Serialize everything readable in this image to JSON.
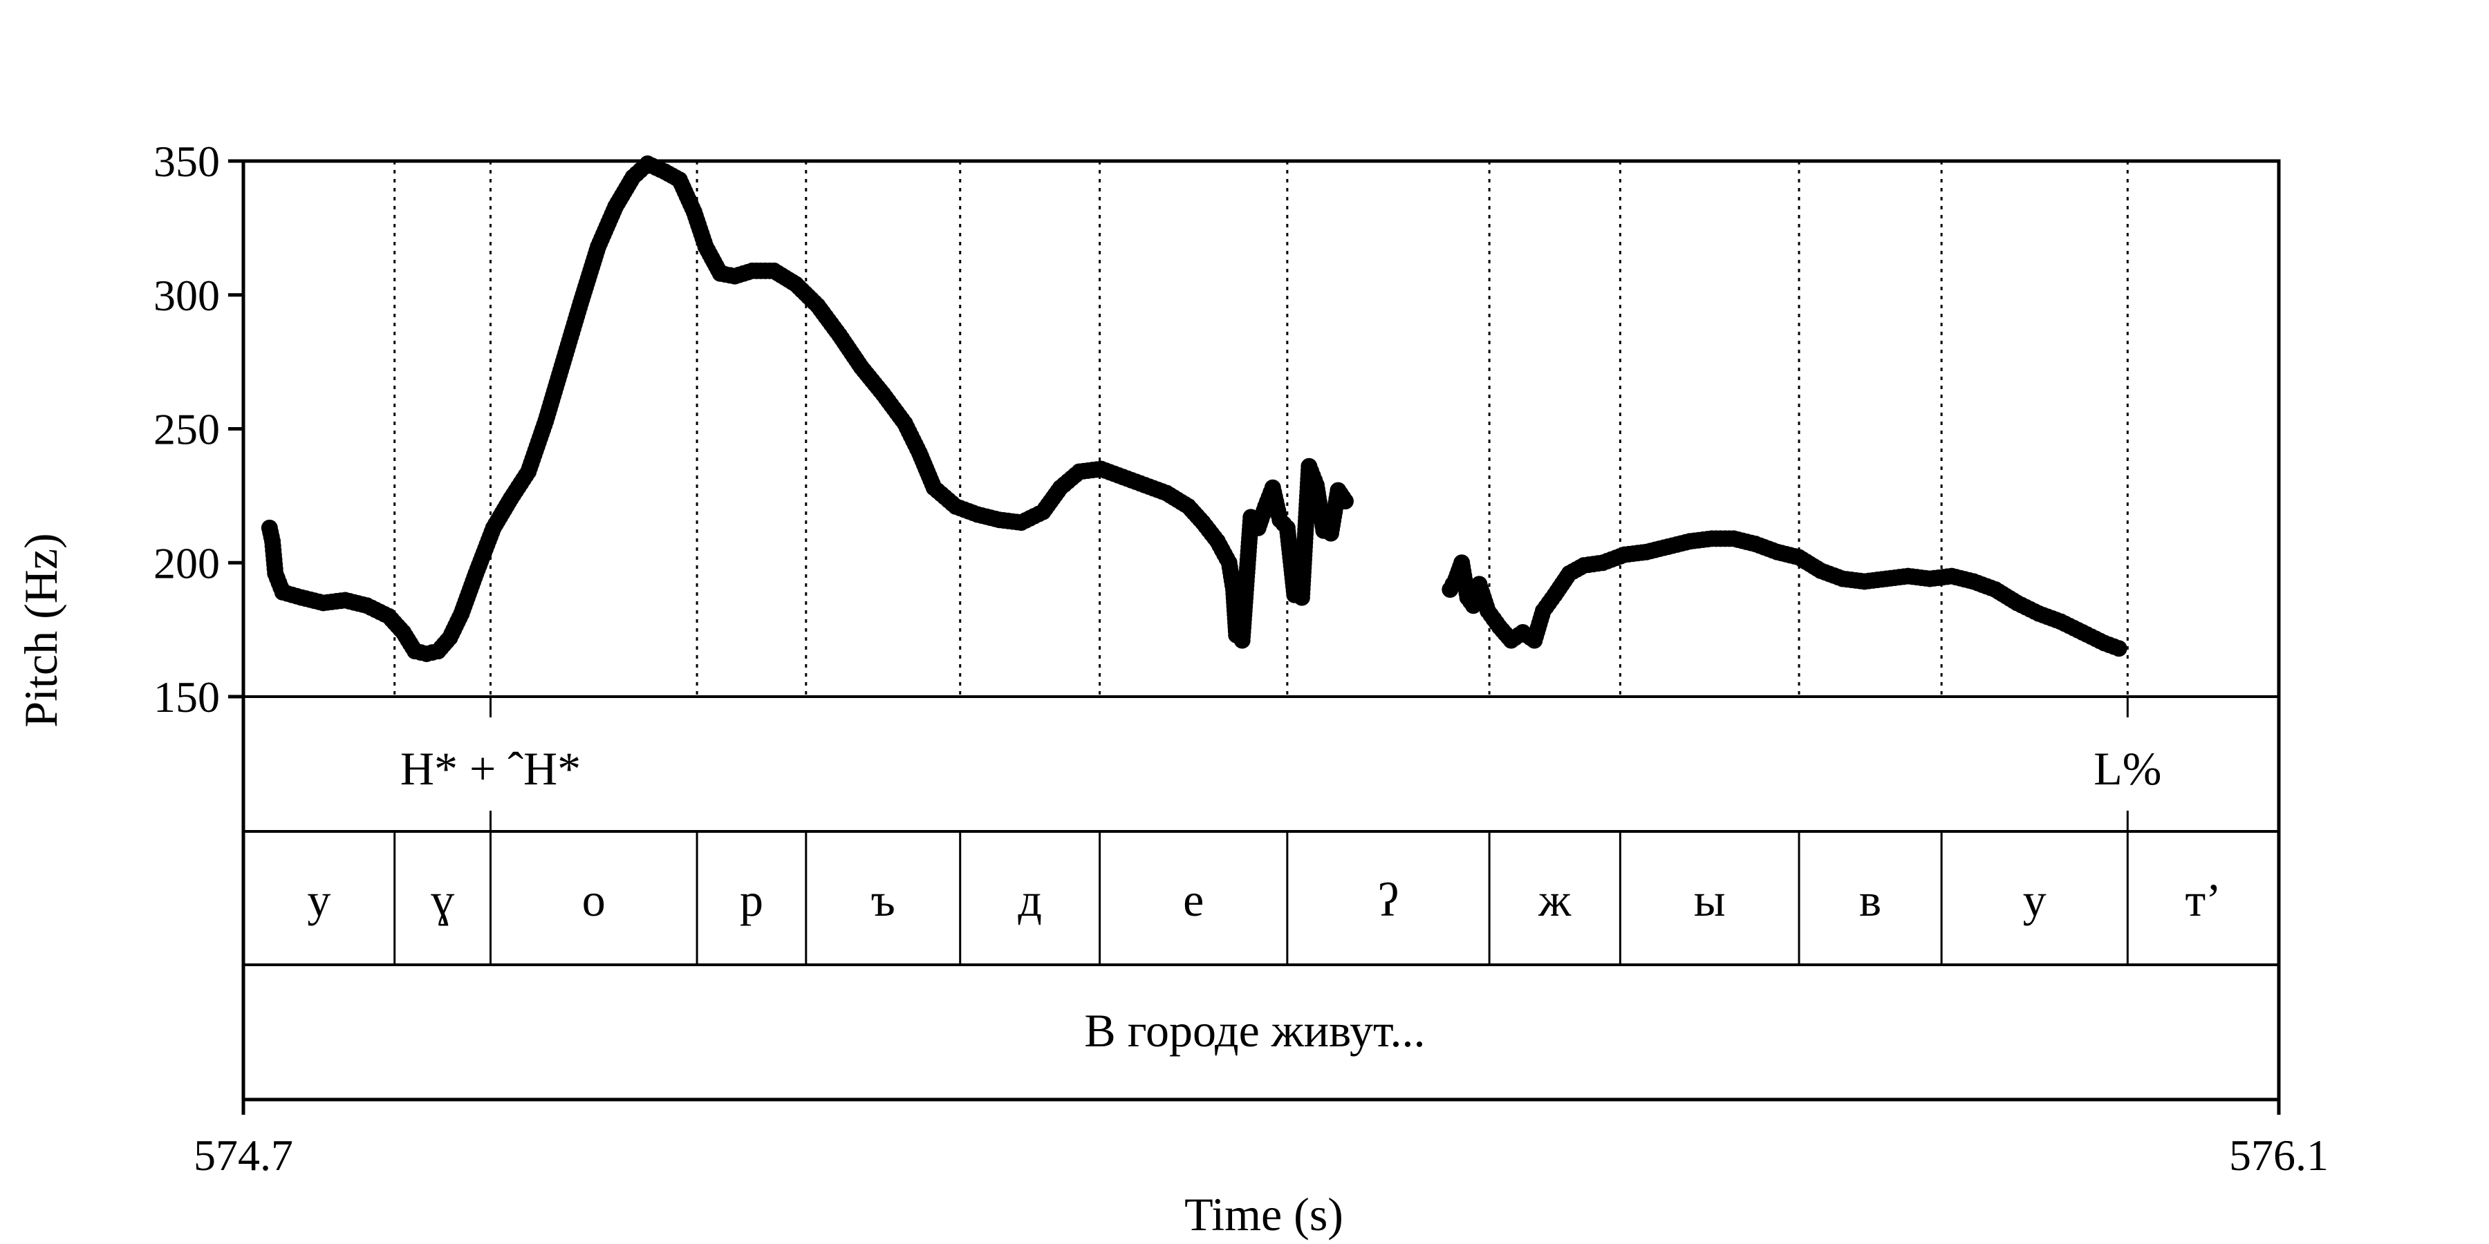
{
  "chart_data": {
    "type": "scatter",
    "title": "",
    "ylabel": "Pitch (Hz)",
    "xlabel": "Time (s)",
    "xlim": [
      574.7,
      576.1
    ],
    "ylim": [
      150,
      350
    ],
    "yticks": [
      150,
      200,
      250,
      300,
      350
    ],
    "xtick_labels": [
      "574.7",
      "576.1"
    ],
    "point_color": "#000000",
    "boundaries": [
      574.804,
      574.87,
      575.012,
      575.087,
      575.193,
      575.289,
      575.418,
      575.557,
      575.647,
      575.77,
      575.868,
      575.996
    ],
    "tone_tier": [
      {
        "time": 574.87,
        "label": "H* + ˆH*"
      },
      {
        "time": 575.996,
        "label": "L%"
      }
    ],
    "segment_tier": [
      "у",
      "ɣ",
      "о",
      "р",
      "ъ",
      "д",
      "е",
      "ʔ",
      "ж",
      "ы",
      "в",
      "у",
      "т’"
    ],
    "text_tier": "В городе живут...",
    "pitch_contour": [
      [
        574.718,
        213
      ],
      [
        574.72,
        208
      ],
      [
        574.722,
        196
      ],
      [
        574.727,
        189
      ],
      [
        574.74,
        187
      ],
      [
        574.755,
        185
      ],
      [
        574.77,
        186
      ],
      [
        574.785,
        184
      ],
      [
        574.8,
        180
      ],
      [
        574.81,
        174
      ],
      [
        574.818,
        167
      ],
      [
        574.826,
        166
      ],
      [
        574.834,
        167
      ],
      [
        574.842,
        172
      ],
      [
        574.85,
        181
      ],
      [
        574.86,
        196
      ],
      [
        574.872,
        213
      ],
      [
        574.884,
        224
      ],
      [
        574.896,
        234
      ],
      [
        574.908,
        253
      ],
      [
        574.92,
        275
      ],
      [
        574.932,
        297
      ],
      [
        574.944,
        318
      ],
      [
        574.956,
        333
      ],
      [
        574.968,
        344
      ],
      [
        574.978,
        349
      ],
      [
        574.99,
        346
      ],
      [
        575.0,
        343
      ],
      [
        575.01,
        331
      ],
      [
        575.018,
        318
      ],
      [
        575.028,
        308
      ],
      [
        575.038,
        307
      ],
      [
        575.05,
        309
      ],
      [
        575.065,
        309
      ],
      [
        575.08,
        304
      ],
      [
        575.095,
        296
      ],
      [
        575.11,
        285
      ],
      [
        575.125,
        273
      ],
      [
        575.14,
        263
      ],
      [
        575.155,
        252
      ],
      [
        575.165,
        241
      ],
      [
        575.175,
        228
      ],
      [
        575.19,
        221
      ],
      [
        575.205,
        218
      ],
      [
        575.22,
        216
      ],
      [
        575.235,
        215
      ],
      [
        575.25,
        219
      ],
      [
        575.262,
        228
      ],
      [
        575.275,
        234
      ],
      [
        575.29,
        235
      ],
      [
        575.305,
        232
      ],
      [
        575.32,
        229
      ],
      [
        575.335,
        226
      ],
      [
        575.35,
        221
      ],
      [
        575.36,
        215
      ],
      [
        575.37,
        208
      ],
      [
        575.378,
        200
      ],
      [
        575.381,
        190
      ],
      [
        575.383,
        173
      ],
      [
        575.387,
        171
      ],
      [
        575.393,
        217
      ],
      [
        575.398,
        213
      ],
      [
        575.403,
        221
      ],
      [
        575.408,
        228
      ],
      [
        575.413,
        216
      ],
      [
        575.418,
        213
      ],
      [
        575.423,
        188
      ],
      [
        575.428,
        187
      ],
      [
        575.433,
        236
      ],
      [
        575.438,
        229
      ],
      [
        575.443,
        212
      ],
      [
        575.448,
        211
      ],
      [
        575.453,
        227
      ],
      [
        575.458,
        223
      ],
      [
        575.53,
        190
      ],
      [
        575.534,
        194
      ],
      [
        575.538,
        200
      ],
      [
        575.542,
        187
      ],
      [
        575.546,
        184
      ],
      [
        575.55,
        192
      ],
      [
        575.556,
        182
      ],
      [
        575.564,
        176
      ],
      [
        575.572,
        171
      ],
      [
        575.58,
        174
      ],
      [
        575.588,
        171
      ],
      [
        575.594,
        182
      ],
      [
        575.602,
        188
      ],
      [
        575.612,
        196
      ],
      [
        575.622,
        199
      ],
      [
        575.635,
        200
      ],
      [
        575.65,
        203
      ],
      [
        575.665,
        204
      ],
      [
        575.68,
        206
      ],
      [
        575.695,
        208
      ],
      [
        575.71,
        209
      ],
      [
        575.725,
        209
      ],
      [
        575.74,
        207
      ],
      [
        575.755,
        204
      ],
      [
        575.77,
        202
      ],
      [
        575.785,
        197
      ],
      [
        575.8,
        194
      ],
      [
        575.815,
        193
      ],
      [
        575.83,
        194
      ],
      [
        575.845,
        195
      ],
      [
        575.86,
        194
      ],
      [
        575.875,
        195
      ],
      [
        575.89,
        193
      ],
      [
        575.905,
        190
      ],
      [
        575.92,
        185
      ],
      [
        575.935,
        181
      ],
      [
        575.95,
        178
      ],
      [
        575.965,
        174
      ],
      [
        575.98,
        170
      ],
      [
        575.99,
        168
      ]
    ]
  }
}
